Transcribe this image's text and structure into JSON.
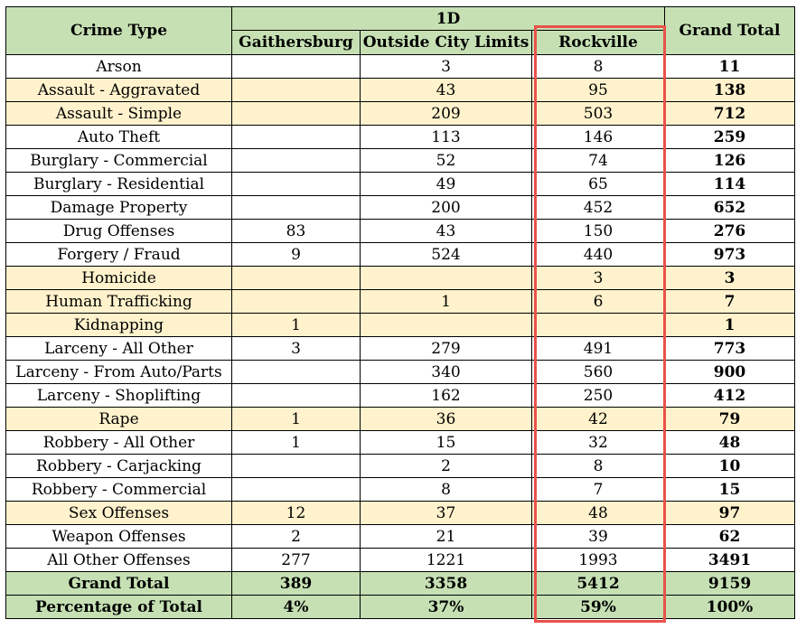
{
  "table": {
    "header": {
      "crime_type": "Crime Type",
      "group": "1D",
      "gaithersburg": "Gaithersburg",
      "outside": "Outside City Limits",
      "rockville": "Rockville",
      "grand_total": "Grand Total"
    },
    "rows": [
      {
        "type": "Arson",
        "g": "",
        "o": "3",
        "r": "8",
        "t": "11",
        "highlight": false
      },
      {
        "type": "Assault - Aggravated",
        "g": "",
        "o": "43",
        "r": "95",
        "t": "138",
        "highlight": true
      },
      {
        "type": "Assault - Simple",
        "g": "",
        "o": "209",
        "r": "503",
        "t": "712",
        "highlight": true
      },
      {
        "type": "Auto Theft",
        "g": "",
        "o": "113",
        "r": "146",
        "t": "259",
        "highlight": false
      },
      {
        "type": "Burglary - Commercial",
        "g": "",
        "o": "52",
        "r": "74",
        "t": "126",
        "highlight": false
      },
      {
        "type": "Burglary - Residential",
        "g": "",
        "o": "49",
        "r": "65",
        "t": "114",
        "highlight": false
      },
      {
        "type": "Damage Property",
        "g": "",
        "o": "200",
        "r": "452",
        "t": "652",
        "highlight": false
      },
      {
        "type": "Drug Offenses",
        "g": "83",
        "o": "43",
        "r": "150",
        "t": "276",
        "highlight": false
      },
      {
        "type": "Forgery / Fraud",
        "g": "9",
        "o": "524",
        "r": "440",
        "t": "973",
        "highlight": false
      },
      {
        "type": "Homicide",
        "g": "",
        "o": "",
        "r": "3",
        "t": "3",
        "highlight": true
      },
      {
        "type": "Human Trafficking",
        "g": "",
        "o": "1",
        "r": "6",
        "t": "7",
        "highlight": true
      },
      {
        "type": "Kidnapping",
        "g": "1",
        "o": "",
        "r": "",
        "t": "1",
        "highlight": true
      },
      {
        "type": "Larceny - All Other",
        "g": "3",
        "o": "279",
        "r": "491",
        "t": "773",
        "highlight": false
      },
      {
        "type": "Larceny - From Auto/Parts",
        "g": "",
        "o": "340",
        "r": "560",
        "t": "900",
        "highlight": false
      },
      {
        "type": "Larceny - Shoplifting",
        "g": "",
        "o": "162",
        "r": "250",
        "t": "412",
        "highlight": false
      },
      {
        "type": "Rape",
        "g": "1",
        "o": "36",
        "r": "42",
        "t": "79",
        "highlight": true
      },
      {
        "type": "Robbery - All Other",
        "g": "1",
        "o": "15",
        "r": "32",
        "t": "48",
        "highlight": false
      },
      {
        "type": "Robbery - Carjacking",
        "g": "",
        "o": "2",
        "r": "8",
        "t": "10",
        "highlight": false
      },
      {
        "type": "Robbery - Commercial",
        "g": "",
        "o": "8",
        "r": "7",
        "t": "15",
        "highlight": false
      },
      {
        "type": "Sex Offenses",
        "g": "12",
        "o": "37",
        "r": "48",
        "t": "97",
        "highlight": true
      },
      {
        "type": "Weapon Offenses",
        "g": "2",
        "o": "21",
        "r": "39",
        "t": "62",
        "highlight": false
      },
      {
        "type": "All Other Offenses",
        "g": "277",
        "o": "1221",
        "r": "1993",
        "t": "3491",
        "highlight": false
      }
    ],
    "grand_total": {
      "label": "Grand Total",
      "g": "389",
      "o": "3358",
      "r": "5412",
      "t": "9159"
    },
    "percentage": {
      "label": "Percentage of Total",
      "g": "4%",
      "o": "37%",
      "r": "59%",
      "t": "100%"
    }
  },
  "colors": {
    "header_green": "#c6e0b4",
    "row_yellow": "#fff2cc",
    "highlight_red": "#e8524a"
  }
}
